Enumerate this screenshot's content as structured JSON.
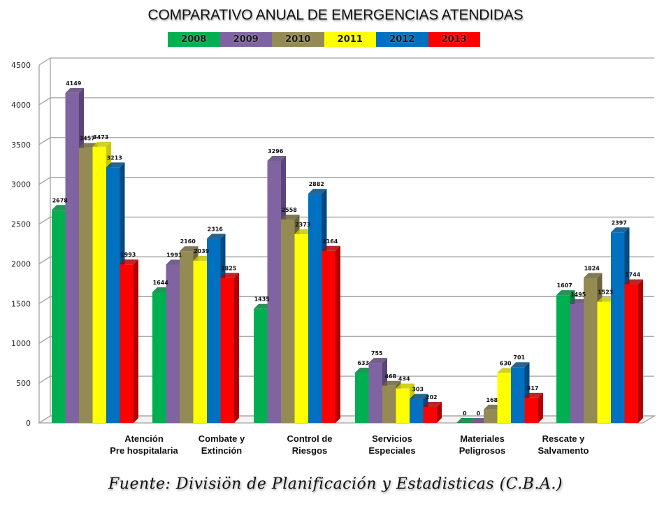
{
  "chart_data": {
    "type": "bar",
    "title": "COMPARATIVO ANUAL DE EMERGENCIAS ATENDIDAS",
    "xlabel": "",
    "ylabel": "",
    "ylim": [
      0,
      4500
    ],
    "yticks": [
      "0",
      "500",
      "1000",
      "1500",
      "2000",
      "2500",
      "3000",
      "3500",
      "4000",
      "4500"
    ],
    "grid": true,
    "legend_position": "top-center",
    "categories": [
      [
        "Atención",
        "Pre hospitalaria"
      ],
      [
        "Combate y",
        "Extinción"
      ],
      [
        "Control de",
        "Riesgos"
      ],
      [
        "Servicios",
        "Especiales"
      ],
      [
        "Materiales",
        "Peligrosos"
      ],
      [
        "Rescate y",
        "Salvamento"
      ]
    ],
    "series": [
      {
        "name": "2008",
        "color": "#00b050",
        "side": "#00803a",
        "values": [
          2678,
          1644,
          1435,
          633,
          0,
          1607
        ]
      },
      {
        "name": "2009",
        "color": "#8064a2",
        "side": "#5a4478",
        "values": [
          4149,
          1991,
          3296,
          755,
          0,
          1495
        ]
      },
      {
        "name": "2010",
        "color": "#948a54",
        "side": "#6b6339",
        "values": [
          3457,
          2160,
          2558,
          468,
          168,
          1824
        ]
      },
      {
        "name": "2011",
        "color": "#ffff00",
        "side": "#c8c800",
        "values": [
          3473,
          2039,
          2373,
          434,
          630,
          1523
        ]
      },
      {
        "name": "2012",
        "color": "#0070c0",
        "side": "#004a80",
        "values": [
          3213,
          2316,
          2882,
          303,
          701,
          2397
        ]
      },
      {
        "name": "2013",
        "color": "#ff0000",
        "side": "#b00000",
        "values": [
          1993,
          1825,
          2164,
          202,
          317,
          1744
        ]
      }
    ]
  },
  "footer": {
    "source": "Fuente: Divisiön de Planificación y Estadisticas (C.B.A.)"
  }
}
